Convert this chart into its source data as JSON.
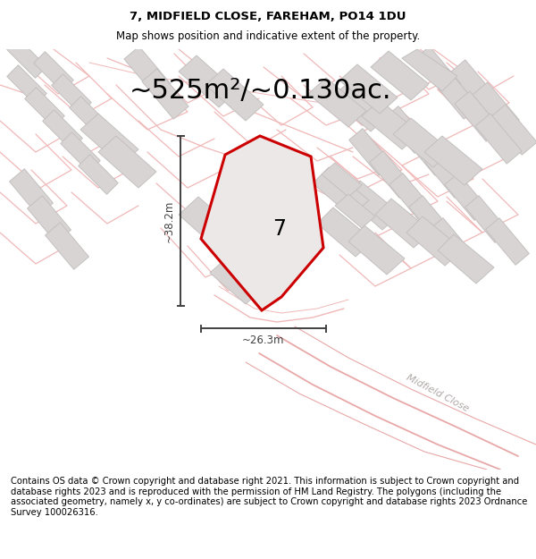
{
  "title_line1": "7, MIDFIELD CLOSE, FAREHAM, PO14 1DU",
  "title_line2": "Map shows position and indicative extent of the property.",
  "area_text": "~525m²/~0.130ac.",
  "label_7": "7",
  "dim_vertical": "~38.2m",
  "dim_horizontal": "~26.3m",
  "street_label": "Midfield Close",
  "footer_text": "Contains OS data © Crown copyright and database right 2021. This information is subject to Crown copyright and database rights 2023 and is reproduced with the permission of HM Land Registry. The polygons (including the associated geometry, namely x, y co-ordinates) are subject to Crown copyright and database rights 2023 Ordnance Survey 100026316.",
  "bg_color": "#ffffff",
  "map_bg": "#ffffff",
  "plot_color": "#cc0000",
  "plot_fill": "#ede8e8",
  "building_fill": "#d8d4d4",
  "building_edge": "#c4c0c0",
  "road_color": "#f0b8b8",
  "road_color2": "#e8a8a8",
  "dim_color": "#404040",
  "title_fontsize": 9.5,
  "subtitle_fontsize": 8.5,
  "area_fontsize": 22,
  "footer_fontsize": 7.2,
  "street_color": "#b0a8a8"
}
